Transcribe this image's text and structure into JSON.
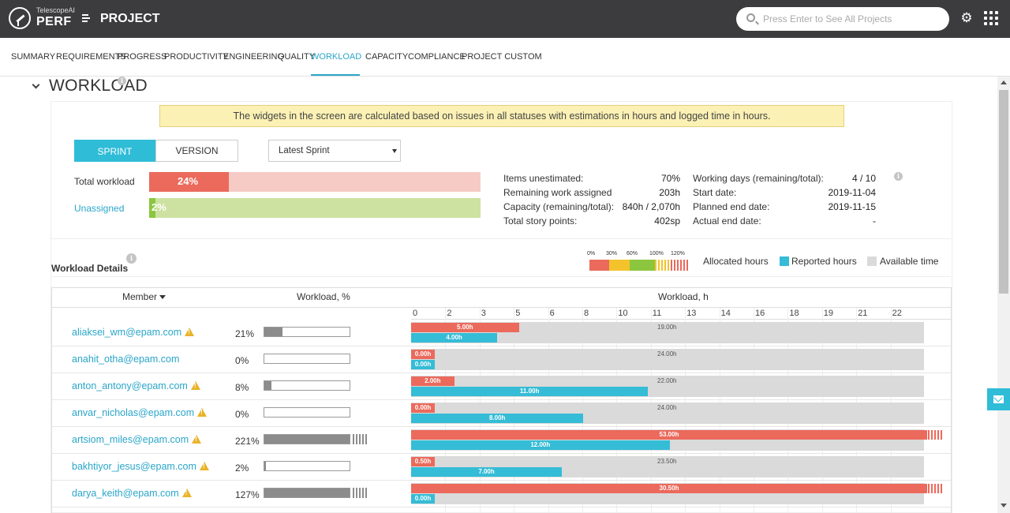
{
  "header": {
    "brand_small": "TelescopeAI",
    "brand_big": "PERF",
    "title": "PROJECT",
    "search_placeholder": "Press Enter to See All Projects"
  },
  "nav": {
    "tabs": [
      {
        "label": "SUMMARY"
      },
      {
        "label": "REQUIREMENTS"
      },
      {
        "label": "PROGRESS"
      },
      {
        "label": "PRODUCTIVITY"
      },
      {
        "label": "ENGINEERING"
      },
      {
        "label": "QUALITY"
      },
      {
        "label": "WORKLOAD"
      },
      {
        "label": "CAPACITY"
      },
      {
        "label": "COMPLIANCE"
      },
      {
        "label": "PROJECT CUSTOM"
      }
    ],
    "active": "WORKLOAD"
  },
  "section": {
    "title": "WORKLOAD",
    "notice": "The widgets in the screen are calculated based on issues in all statuses with estimations in hours and logged time in hours."
  },
  "filters": {
    "sprint_label": "SPRINT",
    "version_label": "VERSION",
    "selected": "Latest Sprint"
  },
  "summary": {
    "total_workload_label": "Total workload",
    "total_workload_value": "24%",
    "total_workload_fraction": 0.24,
    "unassigned_label": "Unassigned",
    "unassigned_value": "2%",
    "unassigned_fraction": 0.02
  },
  "stats": {
    "items_unestimated_label": "Items unestimated:",
    "items_unestimated_value": "70",
    "items_unestimated_unit": "%",
    "remaining_label": "Remaining work assigned",
    "remaining_value": "203",
    "remaining_unit": "h",
    "capacity_label": "Capacity (remaining/total):",
    "capacity_remaining": "840",
    "capacity_unit1": "h / ",
    "capacity_total": "2,070",
    "capacity_unit2": "h",
    "story_points_label": "Total story points:",
    "story_points_value": "402",
    "story_points_unit": "sp",
    "working_days_label": "Working days (remaining/total):",
    "working_days_remaining": "4",
    "working_days_sep": " / ",
    "working_days_total": "10",
    "start_date_label": "Start date:",
    "start_date_value": "2019-11-04",
    "planned_end_label": "Planned end date:",
    "planned_end_value": "2019-11-15",
    "actual_end_label": "Actual end date:",
    "actual_end_value": "-"
  },
  "details": {
    "title": "Workload Details",
    "legend_ticks": [
      "0%",
      "30%",
      "60%",
      "100%",
      "120%"
    ],
    "legend_allocated": "Allocated hours",
    "legend_reported": "Reported hours",
    "legend_available": "Available time",
    "col_member": "Member",
    "col_workload_pct": "Workload, %",
    "col_workload_h": "Workload, h",
    "axis_ticks": [
      "0",
      "2",
      "3",
      "5",
      "6",
      "8",
      "10",
      "11",
      "13",
      "14",
      "16",
      "18",
      "19",
      "21",
      "22"
    ],
    "colors": {
      "allocated": "#eb6a5c",
      "reported": "#35bcd6",
      "available": "#dadada"
    }
  },
  "members": [
    {
      "email": "aliaksei_wm@epam.com",
      "warn": true,
      "pct": "21%",
      "pct_val": 21,
      "alloc": 5.0,
      "alloc_label": "5.00h",
      "rep": 4.0,
      "rep_label": "4.00h",
      "avail_label": "19.00h"
    },
    {
      "email": "anahit_otha@epam.com",
      "warn": false,
      "pct": "0%",
      "pct_val": 0,
      "alloc": 0,
      "alloc_label": "0.00h",
      "rep": 0,
      "rep_label": "0.00h",
      "avail_label": "24.00h"
    },
    {
      "email": "anton_antony@epam.com",
      "warn": true,
      "pct": "8%",
      "pct_val": 8,
      "alloc": 2.0,
      "alloc_label": "2.00h",
      "rep": 11.0,
      "rep_label": "11.00h",
      "avail_label": "22.00h"
    },
    {
      "email": "anvar_nicholas@epam.com",
      "warn": true,
      "pct": "0%",
      "pct_val": 0,
      "alloc": 0,
      "alloc_label": "0.00h",
      "rep": 8.0,
      "rep_label": "8.00h",
      "avail_label": "24.00h"
    },
    {
      "email": "artsiom_miles@epam.com",
      "warn": true,
      "pct": "221%",
      "pct_val": 221,
      "alloc": 53.0,
      "alloc_label": "53.00h",
      "rep": 12.0,
      "rep_label": "12.00h",
      "avail_label": ""
    },
    {
      "email": "bakhtiyor_jesus@epam.com",
      "warn": true,
      "pct": "2%",
      "pct_val": 2,
      "alloc": 0.5,
      "alloc_label": "0.50h",
      "rep": 7.0,
      "rep_label": "7.00h",
      "avail_label": "23.50h"
    },
    {
      "email": "darya_keith@epam.com",
      "warn": true,
      "pct": "127%",
      "pct_val": 127,
      "alloc": 30.5,
      "alloc_label": "30.50h",
      "rep": 0,
      "rep_label": "0.00h",
      "avail_label": ""
    }
  ]
}
